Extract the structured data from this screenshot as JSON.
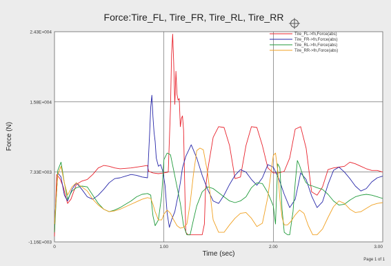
{
  "page": {
    "label": "Page 1 of 1"
  },
  "colors": {
    "background": "#ececec",
    "plot_area": "#ffffff",
    "grid": "#555555"
  },
  "icons": {
    "crosshair": "crosshair-target-icon"
  },
  "chart_data": {
    "type": "line",
    "title": "Force:Tire_FL, Tire_FR, Tire_RL, Tire_RR",
    "xlabel": "Time (sec)",
    "ylabel": "Force (N)",
    "xlim": [
      0,
      3.0
    ],
    "ylim": [
      -1160,
      24300
    ],
    "x_ticks": [
      0,
      1.0,
      2.0,
      3.0
    ],
    "x_tick_labels": [
      "0",
      "1.00",
      "2.00",
      "3.00"
    ],
    "y_ticks": [
      -1160,
      7330,
      15800,
      24300
    ],
    "y_tick_labels": [
      "-1.16E+003",
      "7.33E+003",
      "1.58E+004",
      "2.43E+004"
    ],
    "grid": true,
    "legend_position": "top-right",
    "series": [
      {
        "name": "Tire_FL->fn,Force(abs)",
        "color": "#e8202a",
        "x": [
          0.0,
          0.02,
          0.05,
          0.08,
          0.12,
          0.15,
          0.2,
          0.25,
          0.3,
          0.35,
          0.4,
          0.45,
          0.5,
          0.55,
          0.6,
          0.7,
          0.8,
          0.85,
          0.86,
          0.9,
          0.95,
          1.0,
          1.04,
          1.06,
          1.07,
          1.08,
          1.09,
          1.1,
          1.11,
          1.12,
          1.13,
          1.14,
          1.15,
          1.16,
          1.17,
          1.18,
          1.19,
          1.2,
          1.22,
          1.25,
          1.3,
          1.35,
          1.37,
          1.38,
          1.4,
          1.45,
          1.5,
          1.55,
          1.6,
          1.65,
          1.7,
          1.75,
          1.8,
          1.85,
          1.9,
          1.95,
          2.0,
          2.05,
          2.1,
          2.15,
          2.2,
          2.25,
          2.3,
          2.35,
          2.4,
          2.45,
          2.5,
          2.55,
          2.6,
          2.65,
          2.7,
          2.75,
          2.8,
          2.85,
          2.9,
          2.95,
          3.0
        ],
        "y": [
          -500,
          7000,
          6500,
          5500,
          3500,
          4000,
          5800,
          6200,
          6400,
          7000,
          7800,
          8100,
          8000,
          7800,
          7700,
          7800,
          8000,
          8100,
          7400,
          7200,
          7100,
          7200,
          7300,
          15000,
          21500,
          24000,
          20500,
          15500,
          19500,
          16700,
          16000,
          16200,
          12800,
          13800,
          14100,
          12400,
          6000,
          0,
          -300,
          -300,
          -300,
          -300,
          1000,
          5200,
          7500,
          11500,
          12800,
          12700,
          10500,
          6500,
          6700,
          10500,
          12800,
          12700,
          10500,
          7800,
          7200,
          7200,
          7400,
          9000,
          12500,
          12800,
          10200,
          4900,
          4500,
          5500,
          7600,
          7800,
          7900,
          8000,
          8500,
          8300,
          8000,
          7700,
          7500,
          7500,
          7300
        ]
      },
      {
        "name": "Tire_FR->fn,Force(abs)",
        "color": "#2525a8",
        "x": [
          0.0,
          0.03,
          0.06,
          0.09,
          0.12,
          0.16,
          0.2,
          0.25,
          0.3,
          0.35,
          0.4,
          0.45,
          0.5,
          0.55,
          0.6,
          0.65,
          0.7,
          0.75,
          0.8,
          0.85,
          0.87,
          0.88,
          0.89,
          0.9,
          0.91,
          0.92,
          0.93,
          0.95,
          0.97,
          0.99,
          1.01,
          1.03,
          1.05,
          1.07,
          1.1,
          1.13,
          1.15,
          1.17,
          1.2,
          1.25,
          1.3,
          1.35,
          1.4,
          1.45,
          1.5,
          1.55,
          1.6,
          1.65,
          1.7,
          1.75,
          1.8,
          1.85,
          1.9,
          1.95,
          2.0,
          2.05,
          2.1,
          2.15,
          2.2,
          2.25,
          2.3,
          2.35,
          2.4,
          2.45,
          2.5,
          2.55,
          2.6,
          2.65,
          2.7,
          2.75,
          2.8,
          2.85,
          2.9,
          2.95,
          3.0
        ],
        "y": [
          1000,
          7200,
          6700,
          4500,
          3800,
          5200,
          6000,
          5200,
          4300,
          4000,
          4500,
          5200,
          6000,
          6500,
          6600,
          6800,
          7000,
          6900,
          6700,
          6600,
          12000,
          15200,
          16600,
          14000,
          12100,
          11000,
          9000,
          8000,
          8200,
          7400,
          5700,
          2300,
          600,
          1500,
          2500,
          4500,
          6000,
          7800,
          9200,
          10600,
          9000,
          6900,
          5200,
          3800,
          3500,
          4500,
          5800,
          6900,
          7600,
          7300,
          6400,
          5700,
          6600,
          8200,
          7900,
          6500,
          4600,
          3000,
          4000,
          7200,
          6400,
          4400,
          3000,
          3700,
          5800,
          7500,
          7900,
          7300,
          6500,
          5600,
          5000,
          5300,
          6100,
          6600,
          6800
        ]
      },
      {
        "name": "Tire_RL->fn,Force(abs)",
        "color": "#1f9a3a",
        "x": [
          0.0,
          0.03,
          0.06,
          0.09,
          0.12,
          0.16,
          0.2,
          0.25,
          0.3,
          0.35,
          0.4,
          0.45,
          0.5,
          0.55,
          0.6,
          0.65,
          0.7,
          0.75,
          0.8,
          0.85,
          0.88,
          0.9,
          0.92,
          0.95,
          0.98,
          1.0,
          1.03,
          1.06,
          1.09,
          1.12,
          1.15,
          1.18,
          1.21,
          1.24,
          1.27,
          1.3,
          1.35,
          1.4,
          1.45,
          1.5,
          1.55,
          1.6,
          1.65,
          1.7,
          1.75,
          1.8,
          1.85,
          1.9,
          1.95,
          2.0,
          2.02,
          2.04,
          2.06,
          2.08,
          2.1,
          2.13,
          2.15,
          2.18,
          2.2,
          2.22,
          2.24,
          2.26,
          2.28,
          2.3,
          2.33,
          2.36,
          2.4,
          2.45,
          2.5,
          2.55,
          2.6,
          2.65,
          2.7,
          2.75,
          2.8,
          2.85,
          2.9,
          2.95,
          3.0
        ],
        "y": [
          0,
          7500,
          8500,
          6000,
          4000,
          5000,
          5400,
          5600,
          5500,
          4500,
          3500,
          2800,
          2500,
          2700,
          3000,
          3400,
          3800,
          4300,
          4600,
          4700,
          4500,
          2000,
          800,
          1500,
          4500,
          8800,
          9600,
          9400,
          7500,
          5500,
          3500,
          800,
          -300,
          -300,
          1500,
          3200,
          4900,
          5500,
          5300,
          4800,
          4300,
          3800,
          3600,
          3800,
          4300,
          5400,
          6000,
          5900,
          4800,
          3200,
          1000,
          8300,
          7800,
          2800,
          0,
          -300,
          -300,
          2500,
          6000,
          8700,
          8100,
          7300,
          6500,
          6000,
          5700,
          5600,
          5400,
          5200,
          4600,
          3800,
          3300,
          3400,
          3900,
          4300,
          4500,
          4600,
          4500,
          4300,
          4100
        ]
      },
      {
        "name": "Tire_RR->fn,Force(abs)",
        "color": "#f0a020",
        "x": [
          0.0,
          0.03,
          0.06,
          0.09,
          0.12,
          0.16,
          0.2,
          0.25,
          0.3,
          0.35,
          0.4,
          0.45,
          0.5,
          0.55,
          0.6,
          0.65,
          0.7,
          0.75,
          0.8,
          0.85,
          0.88,
          0.9,
          0.92,
          0.95,
          0.98,
          1.0,
          1.03,
          1.06,
          1.09,
          1.12,
          1.15,
          1.18,
          1.21,
          1.24,
          1.27,
          1.3,
          1.33,
          1.36,
          1.4,
          1.45,
          1.5,
          1.55,
          1.6,
          1.65,
          1.7,
          1.75,
          1.8,
          1.85,
          1.9,
          1.95,
          2.0,
          2.02,
          2.04,
          2.06,
          2.08,
          2.1,
          2.13,
          2.16,
          2.2,
          2.24,
          2.28,
          2.32,
          2.36,
          2.4,
          2.45,
          2.5,
          2.55,
          2.6,
          2.65,
          2.7,
          2.75,
          2.8,
          2.85,
          2.9,
          2.95,
          3.0
        ],
        "y": [
          1000,
          7000,
          8000,
          6000,
          4500,
          5500,
          6000,
          5500,
          5000,
          4000,
          3300,
          2800,
          2500,
          2600,
          2800,
          3100,
          3400,
          3700,
          4000,
          4200,
          4100,
          3400,
          2500,
          1500,
          1500,
          2200,
          2700,
          2300,
          1500,
          800,
          500,
          600,
          1000,
          3500,
          7000,
          9900,
          10200,
          10000,
          7200,
          1500,
          0,
          0,
          900,
          1700,
          2300,
          2400,
          1700,
          700,
          1100,
          4300,
          9300,
          9600,
          7500,
          4000,
          1800,
          900,
          900,
          1300,
          2100,
          2700,
          2300,
          800,
          -300,
          -300,
          400,
          1800,
          3100,
          3800,
          3500,
          2800,
          2400,
          2500,
          2900,
          3300,
          3500,
          3600
        ]
      }
    ]
  }
}
